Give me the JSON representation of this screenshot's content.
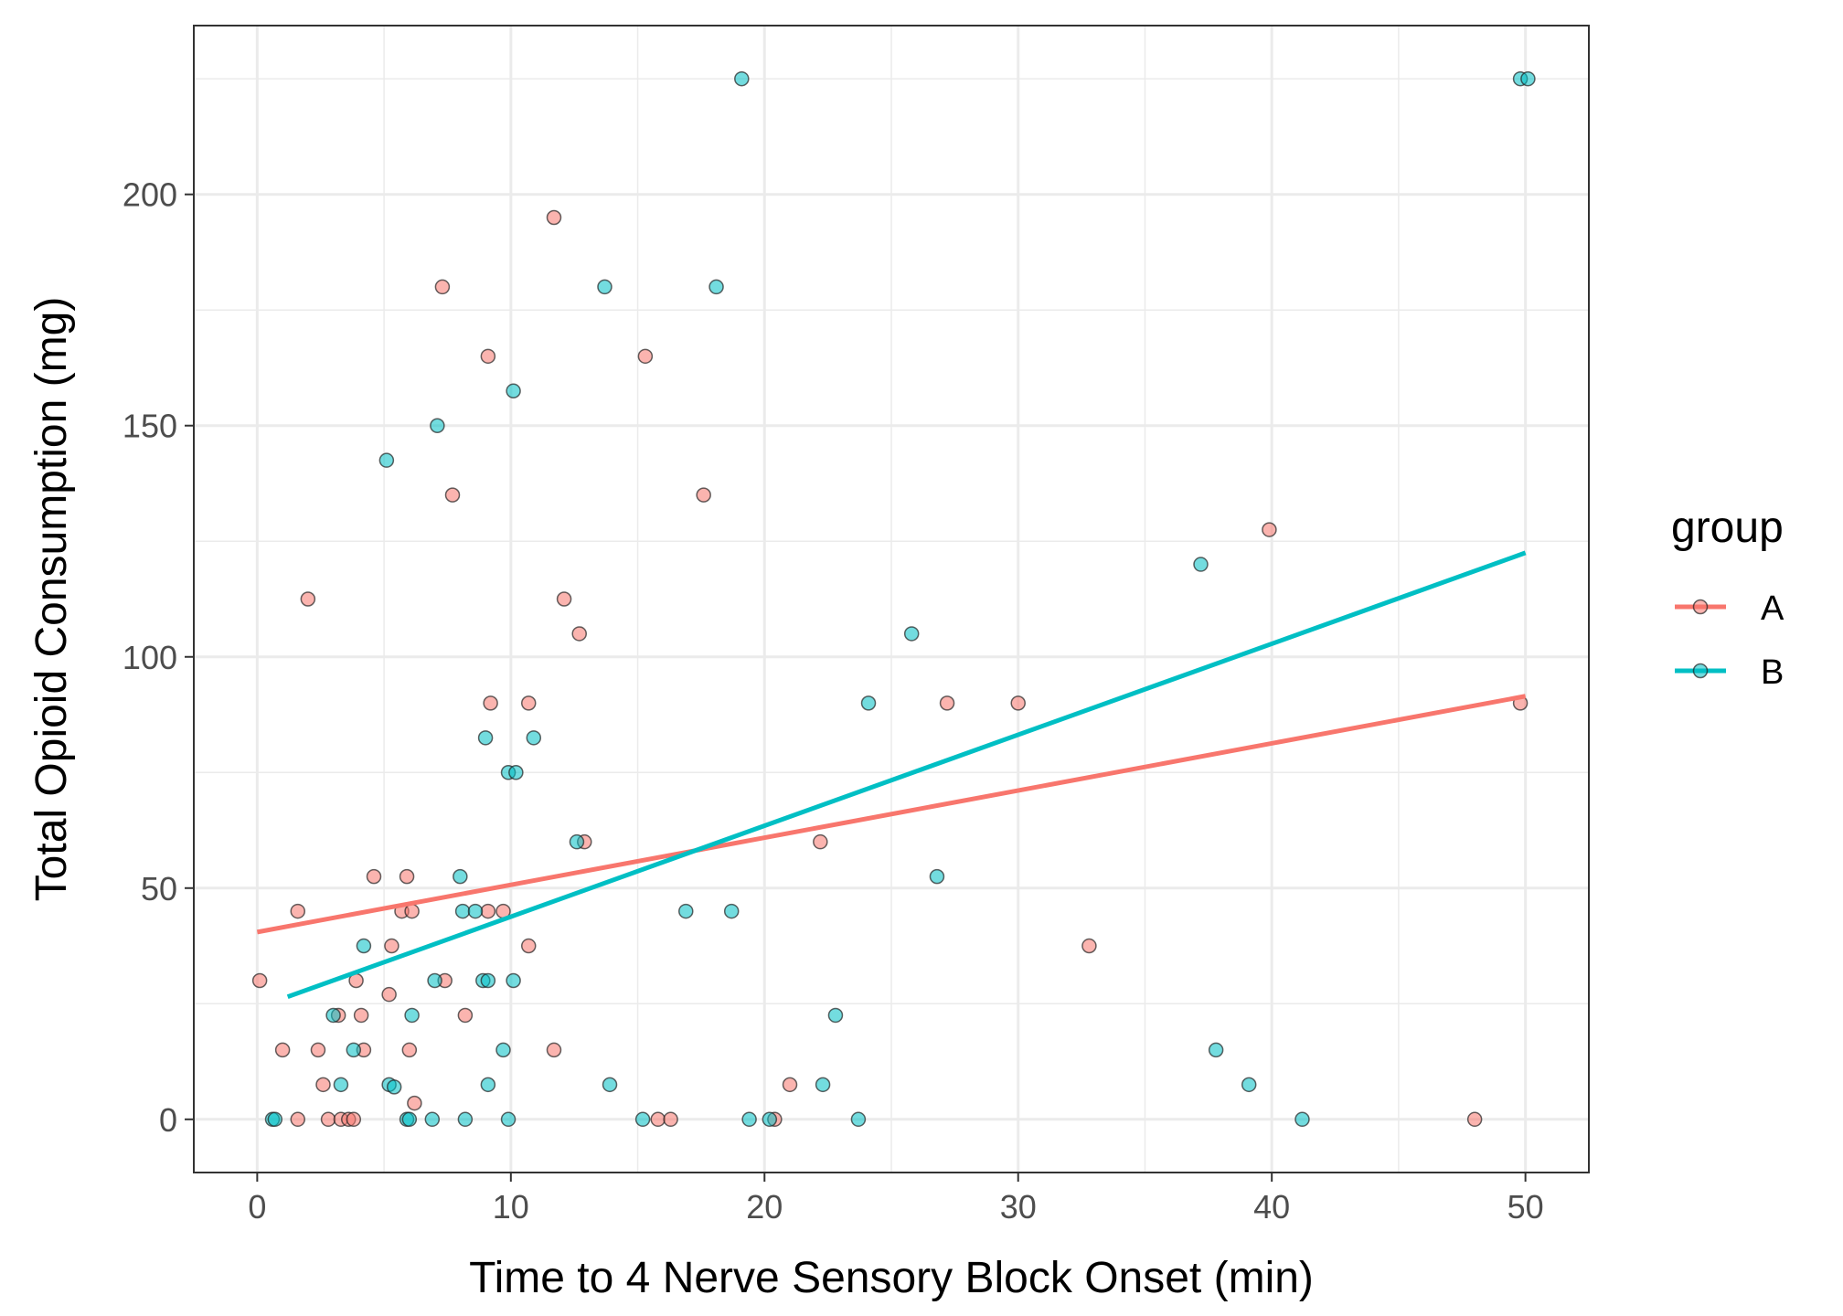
{
  "chart_data": {
    "type": "scatter",
    "title": "",
    "xlabel": "Time to 4 Nerve Sensory Block Onset (min)",
    "ylabel": "Total Opioid Consumption (mg)",
    "xlim": [
      -2.5,
      52.5
    ],
    "ylim": [
      -11.5,
      236.5
    ],
    "x_ticks": [
      0,
      10,
      20,
      30,
      40,
      50
    ],
    "y_ticks": [
      0,
      50,
      100,
      150,
      200
    ],
    "grid": true,
    "legend": {
      "title": "group",
      "position": "right"
    },
    "series": [
      {
        "name": "A",
        "color": "#F8766D",
        "fit_line": {
          "x": [
            0,
            50
          ],
          "y": [
            40.5,
            91.5
          ]
        },
        "points": [
          [
            0.1,
            30
          ],
          [
            1.0,
            15
          ],
          [
            1.6,
            45
          ],
          [
            1.6,
            0
          ],
          [
            2.0,
            112.5
          ],
          [
            2.4,
            15
          ],
          [
            2.6,
            7.5
          ],
          [
            2.8,
            0
          ],
          [
            3.2,
            22.5
          ],
          [
            3.3,
            0
          ],
          [
            3.6,
            0
          ],
          [
            3.8,
            0
          ],
          [
            3.9,
            30
          ],
          [
            4.1,
            22.5
          ],
          [
            4.2,
            15
          ],
          [
            4.6,
            52.5
          ],
          [
            5.2,
            27
          ],
          [
            5.3,
            37.5
          ],
          [
            5.7,
            45
          ],
          [
            5.9,
            52.5
          ],
          [
            6.0,
            15
          ],
          [
            6.1,
            45
          ],
          [
            6.2,
            3.5
          ],
          [
            7.3,
            180
          ],
          [
            7.4,
            30
          ],
          [
            7.7,
            135
          ],
          [
            8.2,
            22.5
          ],
          [
            9.1,
            165
          ],
          [
            9.1,
            45
          ],
          [
            9.2,
            90
          ],
          [
            9.7,
            45
          ],
          [
            10.7,
            90
          ],
          [
            10.7,
            37.5
          ],
          [
            11.7,
            195
          ],
          [
            11.7,
            15
          ],
          [
            12.1,
            112.5
          ],
          [
            12.7,
            105
          ],
          [
            12.9,
            60
          ],
          [
            15.3,
            165
          ],
          [
            15.8,
            0
          ],
          [
            16.3,
            0
          ],
          [
            17.6,
            135
          ],
          [
            20.4,
            0
          ],
          [
            21.0,
            7.5
          ],
          [
            22.2,
            60
          ],
          [
            27.2,
            90
          ],
          [
            30.0,
            90
          ],
          [
            32.8,
            37.5
          ],
          [
            39.9,
            127.5
          ],
          [
            48.0,
            0
          ],
          [
            49.8,
            90
          ]
        ]
      },
      {
        "name": "B",
        "color": "#00BFC4",
        "fit_line": {
          "x": [
            1.2,
            50
          ],
          "y": [
            26.5,
            122.5
          ]
        },
        "points": [
          [
            0.6,
            0
          ],
          [
            0.7,
            0
          ],
          [
            3.0,
            22.5
          ],
          [
            3.3,
            7.5
          ],
          [
            3.8,
            15
          ],
          [
            4.2,
            37.5
          ],
          [
            5.1,
            142.5
          ],
          [
            5.2,
            7.5
          ],
          [
            5.4,
            7
          ],
          [
            5.9,
            0
          ],
          [
            6.0,
            0
          ],
          [
            6.1,
            22.5
          ],
          [
            6.9,
            0
          ],
          [
            7.0,
            30
          ],
          [
            7.1,
            150
          ],
          [
            8.0,
            52.5
          ],
          [
            8.1,
            45
          ],
          [
            8.2,
            0
          ],
          [
            8.6,
            45
          ],
          [
            8.9,
            30
          ],
          [
            9.0,
            82.5
          ],
          [
            9.1,
            30
          ],
          [
            9.1,
            7.5
          ],
          [
            9.7,
            15
          ],
          [
            9.9,
            0
          ],
          [
            9.9,
            75
          ],
          [
            10.1,
            157.5
          ],
          [
            10.1,
            30
          ],
          [
            10.2,
            75
          ],
          [
            10.9,
            82.5
          ],
          [
            12.6,
            60
          ],
          [
            13.7,
            180
          ],
          [
            13.9,
            7.5
          ],
          [
            15.2,
            0
          ],
          [
            16.9,
            45
          ],
          [
            18.1,
            180
          ],
          [
            18.7,
            45
          ],
          [
            19.1,
            225
          ],
          [
            19.4,
            0
          ],
          [
            20.2,
            0
          ],
          [
            22.3,
            7.5
          ],
          [
            22.8,
            22.5
          ],
          [
            23.7,
            0
          ],
          [
            24.1,
            90
          ],
          [
            25.8,
            105
          ],
          [
            26.8,
            52.5
          ],
          [
            37.2,
            120
          ],
          [
            37.8,
            15
          ],
          [
            39.1,
            7.5
          ],
          [
            41.2,
            0
          ],
          [
            49.8,
            225
          ],
          [
            50.1,
            225
          ]
        ]
      }
    ]
  }
}
